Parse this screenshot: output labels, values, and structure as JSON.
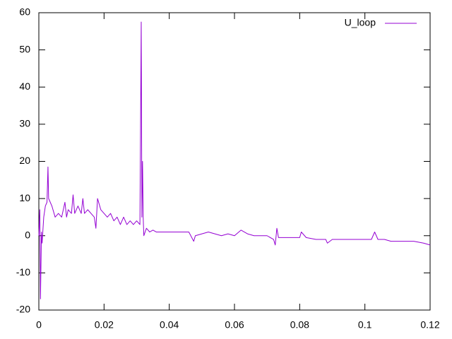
{
  "chart_data": {
    "type": "line",
    "x": [
      0,
      0.0003,
      0.0005,
      0.0008,
      0.001,
      0.0015,
      0.002,
      0.0025,
      0.0028,
      0.003,
      0.0035,
      0.004,
      0.005,
      0.006,
      0.007,
      0.008,
      0.0085,
      0.009,
      0.01,
      0.0105,
      0.011,
      0.012,
      0.013,
      0.0135,
      0.014,
      0.015,
      0.016,
      0.017,
      0.0175,
      0.018,
      0.019,
      0.02,
      0.021,
      0.022,
      0.023,
      0.024,
      0.025,
      0.026,
      0.027,
      0.028,
      0.029,
      0.03,
      0.031,
      0.0314,
      0.0316,
      0.0318,
      0.032,
      0.0322,
      0.033,
      0.034,
      0.035,
      0.036,
      0.038,
      0.04,
      0.042,
      0.044,
      0.046,
      0.0475,
      0.048,
      0.05,
      0.052,
      0.054,
      0.056,
      0.058,
      0.06,
      0.062,
      0.064,
      0.066,
      0.068,
      0.07,
      0.072,
      0.0725,
      0.073,
      0.0735,
      0.075,
      0.078,
      0.08,
      0.0805,
      0.082,
      0.085,
      0.088,
      0.0885,
      0.09,
      0.095,
      0.1,
      0.102,
      0.103,
      0.104,
      0.106,
      0.108,
      0.11,
      0.115,
      0.118,
      0.12
    ],
    "series": [
      {
        "name": "U_loop",
        "color": "#9400d3",
        "values": [
          0,
          7,
          -17,
          1,
          -2,
          5,
          8,
          9,
          18.5,
          10,
          9,
          8,
          5,
          6,
          5,
          9,
          5,
          7,
          6,
          11,
          6,
          8,
          6,
          10,
          6,
          7,
          6,
          5,
          2,
          10,
          7,
          6,
          5,
          6,
          4,
          5,
          3,
          5,
          3,
          4,
          3,
          4,
          3,
          57.5,
          5,
          20,
          5,
          0,
          2,
          1,
          1.5,
          1,
          1,
          1,
          1,
          1,
          1,
          -1.5,
          0,
          0.5,
          1,
          0.5,
          0,
          0.5,
          0,
          1.5,
          0.5,
          0,
          0,
          0,
          -1,
          -2.5,
          2,
          -0.5,
          -0.5,
          -0.5,
          -0.5,
          1,
          -0.5,
          -1,
          -1,
          -2,
          -1,
          -1,
          -1,
          -1,
          1,
          -1,
          -1,
          -1.5,
          -1.5,
          -1.5,
          -2,
          -2.5
        ]
      }
    ],
    "xlim": [
      0,
      0.12
    ],
    "ylim": [
      -20,
      60
    ],
    "xticks": [
      0,
      0.02,
      0.04,
      0.06,
      0.08,
      0.1,
      0.12
    ],
    "yticks": [
      -20,
      -10,
      0,
      10,
      20,
      30,
      40,
      50,
      60
    ],
    "grid": false,
    "legend": "top-right"
  }
}
